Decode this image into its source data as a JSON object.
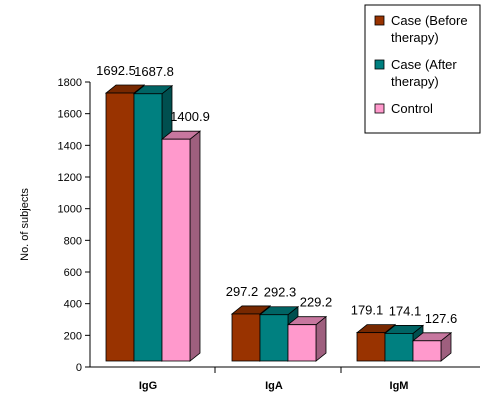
{
  "chart_data": {
    "type": "bar",
    "categories": [
      "IgG",
      "IgA",
      "IgM"
    ],
    "series": [
      {
        "name": "Case (Before therapy)",
        "legend_lines": [
          "Case (Before",
          "therapy)"
        ],
        "color": "#993300",
        "values": [
          1692.5,
          297.2,
          179.1
        ]
      },
      {
        "name": "Case (After therapy)",
        "legend_lines": [
          "Case (After",
          "therapy)"
        ],
        "color": "#008080",
        "values": [
          1687.8,
          292.3,
          174.1
        ]
      },
      {
        "name": "Control",
        "legend_lines": [
          "Control"
        ],
        "color": "#FF99CC",
        "values": [
          1400.9,
          229.2,
          127.6
        ]
      }
    ],
    "ylabel": "No. of subjects",
    "xlabel": "",
    "ylim": [
      0,
      1800
    ],
    "yticks": [
      0,
      200,
      400,
      600,
      800,
      1000,
      1200,
      1400,
      1600,
      1800
    ],
    "legend_position": "top-right",
    "grid": false,
    "three_d": true
  }
}
